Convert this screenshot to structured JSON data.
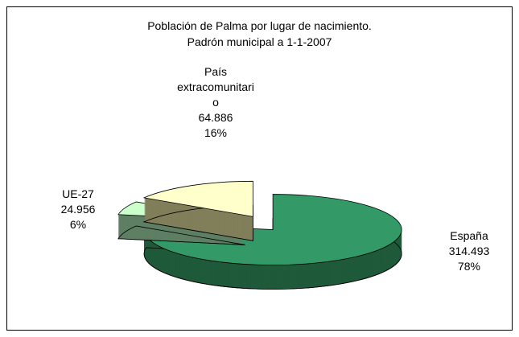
{
  "chart_data": {
    "type": "pie",
    "title": "Población de Palma por lugar de nacimiento.",
    "subtitle": "Padrón municipal a 1-1-2007",
    "categories": [
      "España",
      "UE-27",
      "País extracomunitario"
    ],
    "values": [
      314493,
      24956,
      64886
    ],
    "value_labels": [
      "314.493",
      "24.956",
      "64.886"
    ],
    "percent_labels": [
      "78%",
      "6%",
      "16%"
    ],
    "colors": [
      "#339966",
      "#ccffcc",
      "#ffffcc"
    ],
    "side_colors": [
      "#1f5a3a",
      "#5e7f63",
      "#807f5a"
    ]
  }
}
